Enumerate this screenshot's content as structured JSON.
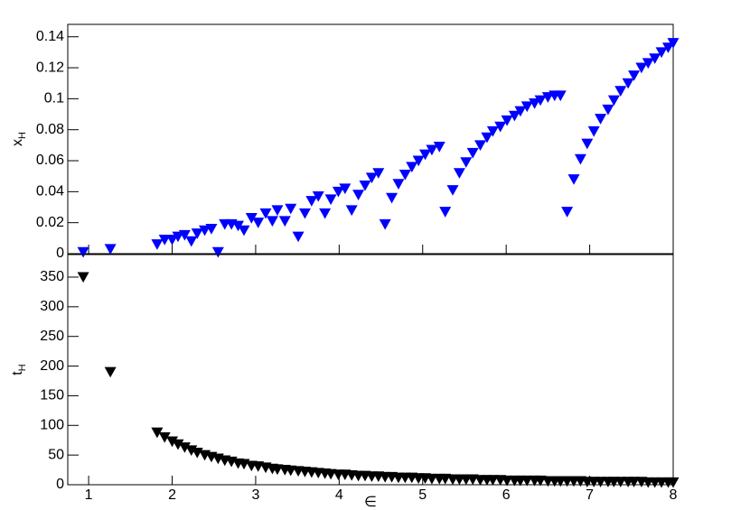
{
  "chart_data": [
    {
      "type": "scatter",
      "ylabel": "x",
      "ylabel_sub": "H",
      "color": "#0000ff",
      "xlim": [
        0.75,
        8
      ],
      "xticks": [
        1,
        2,
        3,
        4,
        5,
        6,
        7,
        8
      ],
      "ylim": [
        0,
        0.148
      ],
      "yticks": [
        0,
        0.02,
        0.04,
        0.06,
        0.08,
        0.1,
        0.12,
        0.14
      ],
      "x": [
        0.935,
        1.26,
        1.82,
        1.91,
        2.0,
        2.07,
        2.15,
        2.23,
        2.3,
        2.39,
        2.47,
        2.55,
        2.63,
        2.71,
        2.79,
        2.86,
        2.95,
        3.03,
        3.12,
        3.2,
        3.26,
        3.35,
        3.42,
        3.51,
        3.59,
        3.67,
        3.75,
        3.83,
        3.9,
        3.99,
        4.07,
        4.15,
        4.23,
        4.31,
        4.39,
        4.47,
        4.55,
        4.63,
        4.71,
        4.79,
        4.87,
        4.95,
        5.03,
        5.11,
        5.2,
        5.27,
        5.36,
        5.44,
        5.52,
        5.6,
        5.69,
        5.77,
        5.84,
        5.93,
        6.01,
        6.1,
        6.17,
        6.25,
        6.34,
        6.41,
        6.5,
        6.58,
        6.65,
        6.73,
        6.81,
        6.89,
        6.97,
        7.05,
        7.13,
        7.22,
        7.29,
        7.37,
        7.46,
        7.53,
        7.62,
        7.7,
        7.78,
        7.86,
        7.94,
        8.0
      ],
      "values": [
        0.001,
        0.003,
        0.006,
        0.009,
        0.009,
        0.011,
        0.012,
        0.008,
        0.013,
        0.015,
        0.016,
        0.001,
        0.019,
        0.019,
        0.018,
        0.015,
        0.023,
        0.02,
        0.026,
        0.021,
        0.028,
        0.021,
        0.029,
        0.011,
        0.026,
        0.034,
        0.037,
        0.026,
        0.035,
        0.04,
        0.042,
        0.028,
        0.038,
        0.044,
        0.049,
        0.052,
        0.019,
        0.036,
        0.045,
        0.051,
        0.056,
        0.06,
        0.064,
        0.067,
        0.069,
        0.027,
        0.041,
        0.052,
        0.059,
        0.065,
        0.07,
        0.075,
        0.079,
        0.082,
        0.086,
        0.089,
        0.092,
        0.095,
        0.097,
        0.099,
        0.101,
        0.102,
        0.102,
        0.027,
        0.048,
        0.061,
        0.071,
        0.079,
        0.087,
        0.093,
        0.099,
        0.105,
        0.11,
        0.115,
        0.12,
        0.123,
        0.126,
        0.13,
        0.133,
        0.136
      ]
    },
    {
      "type": "scatter",
      "ylabel": "t",
      "ylabel_sub": "H",
      "xlabel": "∈",
      "color": "#000000",
      "xlim": [
        0.75,
        8
      ],
      "xticks": [
        1,
        2,
        3,
        4,
        5,
        6,
        7,
        8
      ],
      "ylim": [
        0,
        388
      ],
      "yticks": [
        0,
        50,
        100,
        150,
        200,
        250,
        300,
        350
      ],
      "x": [
        0.935,
        1.26,
        1.82,
        1.91,
        2.0,
        2.07,
        2.15,
        2.23,
        2.3,
        2.39,
        2.47,
        2.55,
        2.63,
        2.71,
        2.79,
        2.86,
        2.95,
        3.03,
        3.12,
        3.2,
        3.26,
        3.35,
        3.42,
        3.51,
        3.59,
        3.67,
        3.75,
        3.83,
        3.9,
        3.99,
        4.07,
        4.15,
        4.23,
        4.31,
        4.39,
        4.47,
        4.55,
        4.63,
        4.71,
        4.79,
        4.87,
        4.95,
        5.03,
        5.11,
        5.2,
        5.27,
        5.36,
        5.44,
        5.52,
        5.6,
        5.69,
        5.77,
        5.84,
        5.93,
        6.01,
        6.1,
        6.17,
        6.25,
        6.34,
        6.41,
        6.5,
        6.58,
        6.65,
        6.73,
        6.81,
        6.89,
        6.97,
        7.05,
        7.13,
        7.22,
        7.29,
        7.37,
        7.46,
        7.53,
        7.62,
        7.7,
        7.78,
        7.86,
        7.94,
        8.0
      ],
      "values": [
        350,
        190,
        88,
        80,
        73,
        68,
        63,
        58,
        54,
        50,
        47,
        44,
        41,
        39,
        36,
        35,
        32,
        31,
        29,
        27,
        26,
        25,
        24,
        23,
        22,
        21,
        20,
        19,
        18,
        17,
        17,
        16,
        15,
        15,
        14,
        14,
        13,
        13,
        12,
        12,
        12,
        11,
        11,
        10,
        10,
        10,
        9,
        9,
        9,
        9,
        8,
        8,
        8,
        8,
        7,
        7,
        7,
        7,
        7,
        7,
        6,
        6,
        6,
        6,
        6,
        6,
        5,
        5,
        5,
        5,
        5,
        5,
        5,
        5,
        5,
        4,
        4,
        4,
        4,
        4
      ]
    }
  ]
}
